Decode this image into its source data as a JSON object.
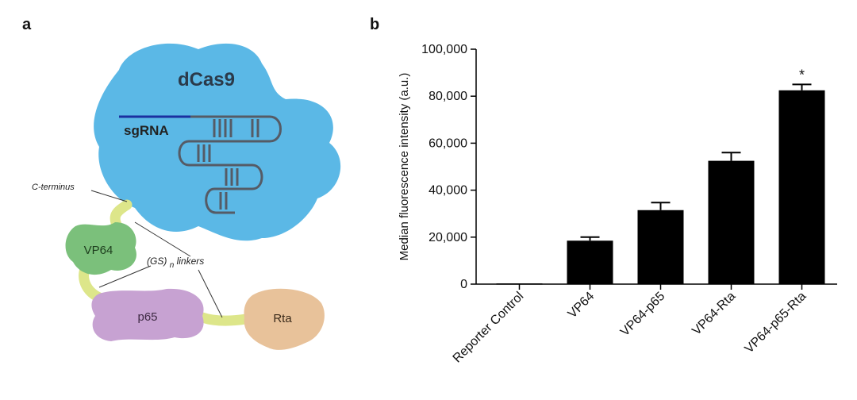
{
  "panel_a": {
    "letter": "a",
    "labels": {
      "dcas9": "dCas9",
      "sgrna": "sgRNA",
      "c_terminus": "C-terminus",
      "linkers_prefix": "(GS)",
      "linkers_sub": "n",
      "linkers_suffix": " linkers",
      "vp64": "VP64",
      "p65": "p65",
      "rta": "Rta"
    },
    "colors": {
      "dcas9": "#5bb8e6",
      "vp64": "#7bc07b",
      "p65": "#c7a2d2",
      "rta": "#e8c29a",
      "linker": "#dde68a",
      "rna": "#555b66",
      "sgrna_line": "#1b2fa0"
    }
  },
  "panel_b": {
    "letter": "b"
  },
  "chart_data": {
    "type": "bar",
    "ylabel": "Median fluorescence intensity (a.u.)",
    "xlabel": "",
    "ylim": [
      0,
      100000
    ],
    "yticks": [
      0,
      20000,
      40000,
      60000,
      80000,
      100000
    ],
    "ytick_labels": [
      "0",
      "20,000",
      "40,000",
      "60,000",
      "80,000",
      "100,000"
    ],
    "categories": [
      "Reporter Control",
      "VP64",
      "VP64-p65",
      "VP64-Rta",
      "VP64-p65-Rta"
    ],
    "values": [
      300,
      18500,
      31500,
      52500,
      82500
    ],
    "errors": [
      0,
      1500,
      3200,
      3500,
      2500
    ],
    "annotations": [
      {
        "category": "VP64-p65-Rta",
        "text": "*"
      }
    ],
    "bar_color": "#000000",
    "grid": false
  }
}
